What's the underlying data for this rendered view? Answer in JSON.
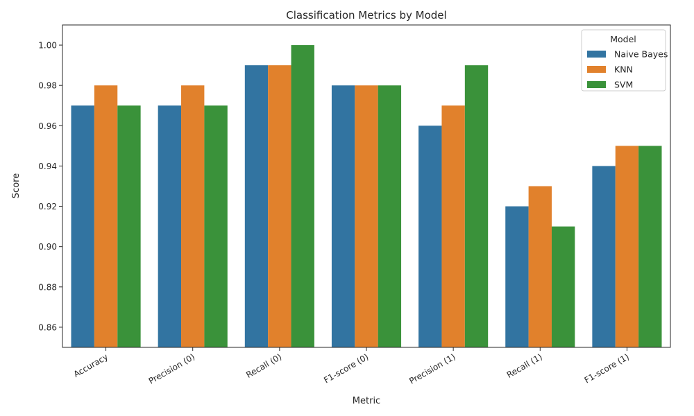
{
  "chart_data": {
    "type": "bar",
    "title": "Classification Metrics by Model",
    "xlabel": "Metric",
    "ylabel": "Score",
    "categories": [
      "Accuracy",
      "Precision (0)",
      "Recall (0)",
      "F1-score (0)",
      "Precision (1)",
      "Recall (1)",
      "F1-score (1)"
    ],
    "series": [
      {
        "name": "Naive Bayes",
        "color": "#3274a1",
        "values": [
          0.97,
          0.97,
          0.99,
          0.98,
          0.96,
          0.92,
          0.94
        ]
      },
      {
        "name": "KNN",
        "color": "#e1812c",
        "values": [
          0.98,
          0.98,
          0.99,
          0.98,
          0.97,
          0.93,
          0.95
        ]
      },
      {
        "name": "SVM",
        "color": "#3a923a",
        "values": [
          0.97,
          0.97,
          1.0,
          0.98,
          0.99,
          0.91,
          0.95
        ]
      }
    ],
    "ylim": [
      0.85,
      1.01
    ],
    "yticks": [
      "0.86",
      "0.88",
      "0.90",
      "0.92",
      "0.94",
      "0.96",
      "0.98",
      "1.00"
    ],
    "legend": {
      "title": "Model",
      "position": "top-right"
    },
    "grid": false
  }
}
